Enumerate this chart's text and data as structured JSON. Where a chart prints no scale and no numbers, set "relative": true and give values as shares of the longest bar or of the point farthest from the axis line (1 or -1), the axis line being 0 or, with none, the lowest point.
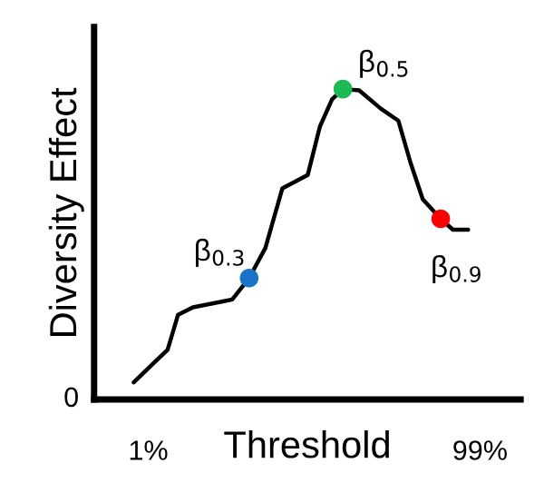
{
  "chart_data": {
    "type": "line",
    "relative": true,
    "xlabel": "Threshold",
    "ylabel": "Diversity Effect",
    "xlim": [
      -15,
      111
    ],
    "xticks": [
      {
        "value": 1,
        "label": "1%"
      },
      {
        "value": 99,
        "label": "99%"
      }
    ],
    "series": [
      {
        "color": "#000000",
        "x": [
          -3.3,
          2.6,
          6.7,
          9.8,
          14.2,
          25.8,
          30.8,
          35.6,
          40.6,
          48.1,
          51.7,
          55.3,
          58.5,
          63.3,
          69.6,
          74.9,
          78.5,
          82.1,
          87.4,
          91,
          95.5
        ],
        "values": [
          0.055,
          0.117,
          0.16,
          0.273,
          0.297,
          0.322,
          0.391,
          0.488,
          0.68,
          0.723,
          0.879,
          0.967,
          1.0,
          0.996,
          0.938,
          0.898,
          0.762,
          0.645,
          0.582,
          0.547,
          0.547
        ]
      },
      {
        "type": "scatter",
        "x": [
          30.8,
          58.5,
          87.4
        ],
        "values": [
          0.391,
          1.0,
          0.582
        ],
        "colors": [
          "#1a73c8",
          "#1db954",
          "#ff0000"
        ]
      }
    ],
    "annotations": [
      "0",
      {
        "text": "β$_{0.3}$",
        "x": 30.8,
        "y": 0.391
      },
      {
        "text": "β$_{0.5}$",
        "x": 58.5,
        "y": 1.0
      },
      {
        "text": "β$_{0.9}$",
        "x": 87.4,
        "y": 0.582
      }
    ]
  }
}
